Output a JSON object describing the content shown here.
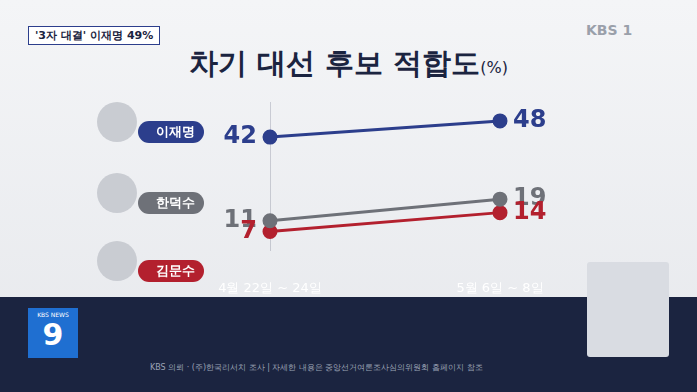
{
  "chart_data": {
    "type": "line",
    "title": "차기 대선 후보 적합도",
    "unit_label": "(%)",
    "categories": [
      "4월 22일 ~ 24일",
      "5월 6일 ~ 8일"
    ],
    "series": [
      {
        "name": "이재명",
        "color": "#2c3e8c",
        "values": [
          42,
          48
        ]
      },
      {
        "name": "한덕수",
        "color": "#6e7178",
        "values": [
          11,
          19
        ]
      },
      {
        "name": "김문수",
        "color": "#b3202e",
        "values": [
          7,
          14
        ]
      }
    ],
    "ylim": [
      0,
      55
    ],
    "grid": false,
    "data_labels": true,
    "tick_labels": "x",
    "marker": "circle",
    "line_style": "solid"
  },
  "page": {
    "tag": "'3자 대결' 이재명 49%",
    "channel": "KBS 1",
    "program": [
      "KBS NEWS",
      "9"
    ],
    "source": "KBS 의뢰 · (주)한국리서치 조사 | 자세한 내용은 중앙선거여론조사심의위원회 홈페이지 참조"
  }
}
